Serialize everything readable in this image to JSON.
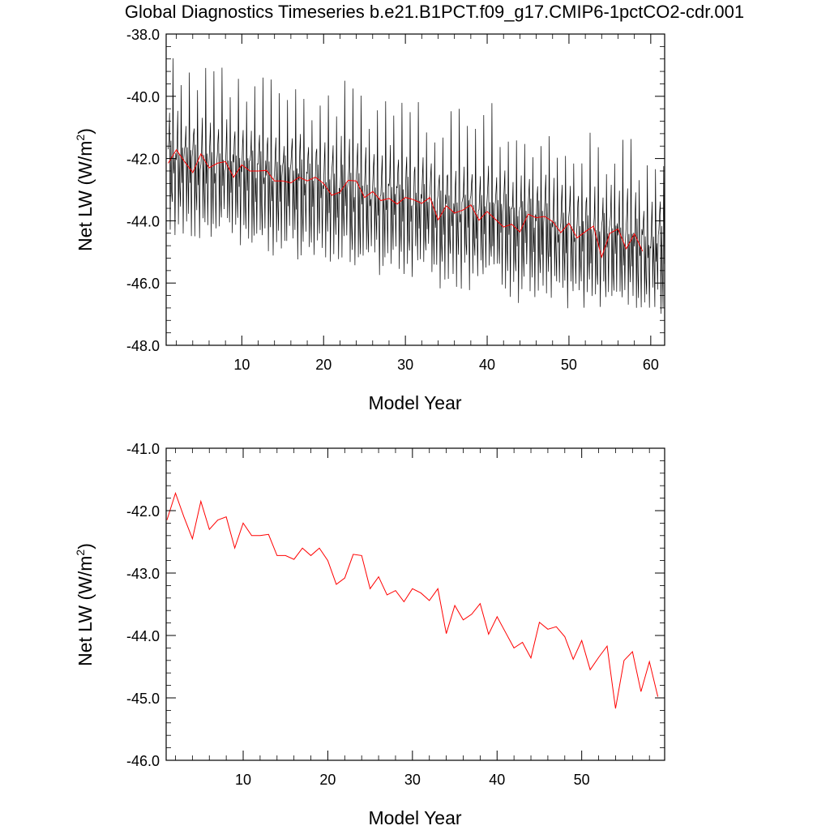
{
  "title": "Global Diagnostics Timeseries b.e21.B1PCT.f09_g17.CMIP6-1pctCO2-cdr.001",
  "colors": {
    "monthly": "#000000",
    "annual": "#ff0000"
  },
  "chart_data": [
    {
      "type": "line",
      "ylabel_main": "Net LW (W/m",
      "ylabel_sup": "2",
      "ylabel_tail": ")",
      "xlabel": "Model Year",
      "xlim": [
        0.75,
        61.7
      ],
      "ylim": [
        -48,
        -38
      ],
      "yticks": [
        -48,
        -46,
        -44,
        -42,
        -40,
        -38
      ],
      "ytick_labels": [
        "-48.0",
        "-46.0",
        "-44.0",
        "-42.0",
        "-40.0",
        "-38.0"
      ],
      "xticks": [
        10,
        20,
        30,
        40,
        50,
        60
      ],
      "xtick_labels": [
        "10",
        "20",
        "30",
        "40",
        "50",
        "60"
      ],
      "series": [
        {
          "name": "monthly",
          "generator": "monthly-seasonal",
          "years": 61,
          "trend_start": -42.0,
          "trend_slope": -0.047,
          "peak_amplitude": 2.8,
          "trough_amplitude": 2.1,
          "noise": 0.35
        },
        {
          "name": "annual",
          "x": [
            1,
            2,
            3,
            4,
            5,
            6,
            7,
            8,
            9,
            10,
            11,
            12,
            13,
            14,
            15,
            16,
            17,
            18,
            19,
            20,
            21,
            22,
            23,
            24,
            25,
            26,
            27,
            28,
            29,
            30,
            31,
            32,
            33,
            34,
            35,
            36,
            37,
            38,
            39,
            40,
            41,
            42,
            43,
            44,
            45,
            46,
            47,
            48,
            49,
            50,
            51,
            52,
            53,
            54,
            55,
            56,
            57,
            58,
            59
          ],
          "values": [
            -42.15,
            -41.72,
            -42.1,
            -42.45,
            -41.85,
            -42.3,
            -42.15,
            -42.1,
            -42.6,
            -42.2,
            -42.4,
            -42.4,
            -42.38,
            -42.72,
            -42.72,
            -42.78,
            -42.6,
            -42.72,
            -42.6,
            -42.8,
            -43.18,
            -43.08,
            -42.7,
            -42.72,
            -43.25,
            -43.06,
            -43.35,
            -43.28,
            -43.46,
            -43.25,
            -43.32,
            -43.44,
            -43.25,
            -43.97,
            -43.52,
            -43.75,
            -43.66,
            -43.49,
            -43.98,
            -43.7,
            -43.95,
            -44.2,
            -44.11,
            -44.36,
            -43.79,
            -43.9,
            -43.86,
            -44.02,
            -44.38,
            -44.08,
            -44.55,
            -44.35,
            -44.17,
            -45.17,
            -44.4,
            -44.26,
            -44.9,
            -44.42,
            -44.98
          ]
        }
      ]
    },
    {
      "type": "line",
      "ylabel_main": "Net LW (W/m",
      "ylabel_sup": "2",
      "ylabel_tail": ")",
      "xlabel": "Model Year",
      "xlim": [
        0.9,
        59.8
      ],
      "ylim": [
        -46,
        -41
      ],
      "yticks": [
        -46,
        -45,
        -44,
        -43,
        -42,
        -41
      ],
      "ytick_labels": [
        "-46.0",
        "-45.0",
        "-44.0",
        "-43.0",
        "-42.0",
        "-41.0"
      ],
      "xticks": [
        10,
        20,
        30,
        40,
        50
      ],
      "xtick_labels": [
        "10",
        "20",
        "30",
        "40",
        "50"
      ],
      "series": [
        {
          "name": "annual",
          "x": [
            1,
            2,
            3,
            4,
            5,
            6,
            7,
            8,
            9,
            10,
            11,
            12,
            13,
            14,
            15,
            16,
            17,
            18,
            19,
            20,
            21,
            22,
            23,
            24,
            25,
            26,
            27,
            28,
            29,
            30,
            31,
            32,
            33,
            34,
            35,
            36,
            37,
            38,
            39,
            40,
            41,
            42,
            43,
            44,
            45,
            46,
            47,
            48,
            49,
            50,
            51,
            52,
            53,
            54,
            55,
            56,
            57,
            58,
            59
          ],
          "values": [
            -42.15,
            -41.72,
            -42.1,
            -42.45,
            -41.85,
            -42.3,
            -42.15,
            -42.1,
            -42.6,
            -42.2,
            -42.4,
            -42.4,
            -42.38,
            -42.72,
            -42.72,
            -42.78,
            -42.6,
            -42.72,
            -42.6,
            -42.8,
            -43.18,
            -43.08,
            -42.7,
            -42.72,
            -43.25,
            -43.06,
            -43.35,
            -43.28,
            -43.46,
            -43.25,
            -43.32,
            -43.44,
            -43.25,
            -43.97,
            -43.52,
            -43.75,
            -43.66,
            -43.49,
            -43.98,
            -43.7,
            -43.95,
            -44.2,
            -44.11,
            -44.36,
            -43.79,
            -43.9,
            -43.86,
            -44.02,
            -44.38,
            -44.08,
            -44.55,
            -44.35,
            -44.17,
            -45.17,
            -44.4,
            -44.26,
            -44.9,
            -44.42,
            -44.98
          ]
        }
      ]
    }
  ]
}
